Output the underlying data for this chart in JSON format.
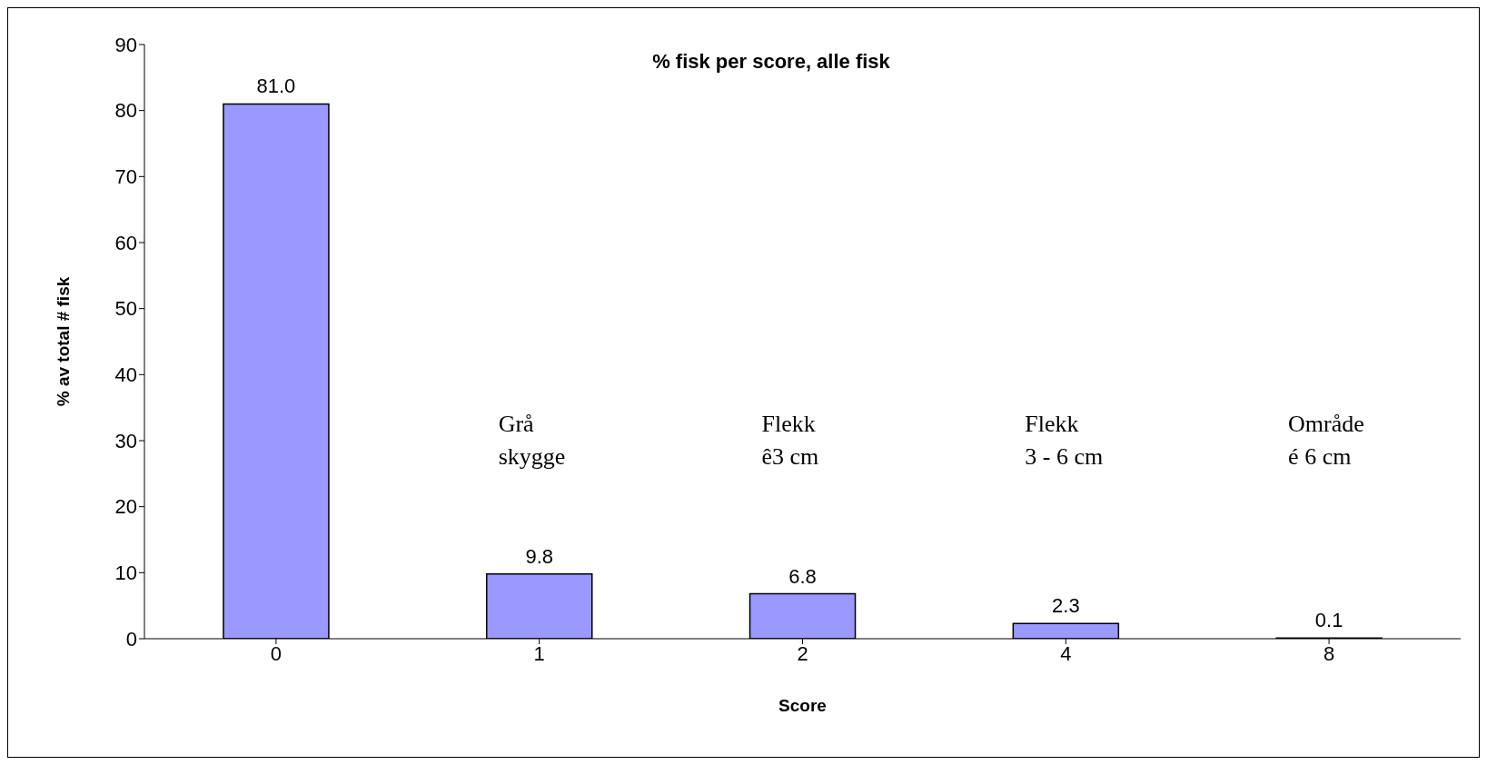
{
  "chart_data": {
    "type": "bar",
    "title": "% fisk per score, alle fisk",
    "xlabel": "Score",
    "ylabel": "% av total # fisk",
    "categories": [
      "0",
      "1",
      "2",
      "4",
      "8"
    ],
    "values": [
      81.0,
      9.8,
      6.8,
      2.3,
      0.1
    ],
    "value_labels": [
      "81.0",
      "9.8",
      "6.8",
      "2.3",
      "0.1"
    ],
    "color": "#9999ff",
    "ylim": [
      0,
      90
    ],
    "yticks": [
      0,
      10,
      20,
      30,
      40,
      50,
      60,
      70,
      80,
      90
    ],
    "grid": false,
    "legend": false,
    "annotations": [
      "Grå\nskygge",
      "Flekk\nê3 cm",
      "Flekk\n3 - 6 cm",
      "Område\né 6 cm"
    ]
  }
}
